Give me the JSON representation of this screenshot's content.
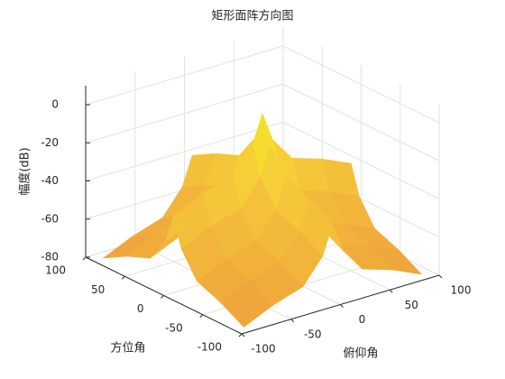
{
  "chart_data": {
    "type": "surface",
    "title": "矩形面阵方向图",
    "xlabel": "俯仰角",
    "ylabel": "方位角",
    "zlabel": "幅度(dB)",
    "x": [
      -90,
      -60,
      -30,
      -10,
      0,
      10,
      30,
      60,
      90
    ],
    "y": [
      -90,
      -60,
      -30,
      -10,
      0,
      10,
      30,
      60,
      90
    ],
    "z": [
      [
        -80,
        -73,
        -68,
        -55,
        -40,
        -55,
        -68,
        -73,
        -80
      ],
      [
        -73,
        -66,
        -61,
        -48,
        -33,
        -48,
        -61,
        -66,
        -73
      ],
      [
        -68,
        -61,
        -56,
        -43,
        -28,
        -43,
        -56,
        -61,
        -68
      ],
      [
        -55,
        -48,
        -43,
        -30,
        -15,
        -30,
        -43,
        -48,
        -55
      ],
      [
        -40,
        -33,
        -28,
        -15,
        0,
        -15,
        -28,
        -33,
        -40
      ],
      [
        -55,
        -48,
        -43,
        -30,
        -15,
        -30,
        -43,
        -48,
        -55
      ],
      [
        -68,
        -61,
        -56,
        -43,
        -28,
        -43,
        -56,
        -61,
        -68
      ],
      [
        -73,
        -66,
        -61,
        -48,
        -33,
        -48,
        -61,
        -66,
        -73
      ],
      [
        -80,
        -73,
        -68,
        -55,
        -40,
        -55,
        -68,
        -73,
        -80
      ]
    ],
    "xlim": [
      -100,
      100
    ],
    "ylim": [
      -100,
      100
    ],
    "zlim": [
      -80,
      10
    ],
    "xticks": [
      -100,
      -50,
      0,
      50,
      100
    ],
    "yticks": [
      -100,
      -50,
      0,
      50,
      100
    ],
    "zticks": [
      -80,
      -60,
      -40,
      -20,
      0
    ],
    "grid": true,
    "colormap": [
      "#eea03c",
      "#f6c83a",
      "#f4f420"
    ]
  }
}
